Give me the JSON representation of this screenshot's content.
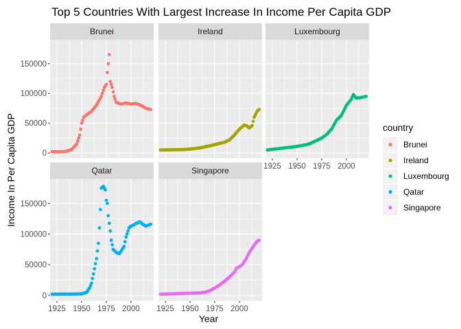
{
  "chart_data": {
    "type": "scatter",
    "title": "Top 5 Countries With Largest Increase In Income Per Capita GDP",
    "xlabel": "Year",
    "ylabel": "Income In Per Capita GDP",
    "xlim": [
      1918,
      2023
    ],
    "ylim": [
      -9000,
      190000
    ],
    "x_ticks": [
      1925,
      1950,
      1975,
      2000,
      2025
    ],
    "y_ticks": [
      0,
      50000,
      100000,
      150000
    ],
    "y_tick_labels": [
      "0",
      "50000",
      "100000",
      "150000"
    ],
    "facet_grid": "3 columns x 2 rows, shared axes",
    "legend": {
      "title": "country",
      "position": "right"
    },
    "series": [
      {
        "name": "Brunei",
        "color": "#F8766D",
        "keypoints": [
          [
            1920,
            2000
          ],
          [
            1930,
            2000
          ],
          [
            1935,
            3000
          ],
          [
            1940,
            6000
          ],
          [
            1945,
            15000
          ],
          [
            1948,
            30000
          ],
          [
            1950,
            50000
          ],
          [
            1952,
            60000
          ],
          [
            1960,
            70000
          ],
          [
            1965,
            80000
          ],
          [
            1970,
            95000
          ],
          [
            1973,
            110000
          ],
          [
            1975,
            115000
          ],
          [
            1976,
            135000
          ],
          [
            1977,
            150000
          ],
          [
            1978,
            165000
          ],
          [
            1979,
            120000
          ],
          [
            1980,
            115000
          ],
          [
            1981,
            110000
          ],
          [
            1983,
            95000
          ],
          [
            1985,
            85000
          ],
          [
            1990,
            82000
          ],
          [
            1995,
            84000
          ],
          [
            2000,
            82000
          ],
          [
            2005,
            83000
          ],
          [
            2010,
            80000
          ],
          [
            2015,
            75000
          ],
          [
            2020,
            73000
          ]
        ]
      },
      {
        "name": "Ireland",
        "color": "#A3A500",
        "keypoints": [
          [
            1920,
            5000
          ],
          [
            1940,
            5500
          ],
          [
            1950,
            6500
          ],
          [
            1960,
            8500
          ],
          [
            1970,
            12000
          ],
          [
            1980,
            16000
          ],
          [
            1985,
            18000
          ],
          [
            1990,
            22000
          ],
          [
            1995,
            30000
          ],
          [
            2000,
            40000
          ],
          [
            2005,
            47000
          ],
          [
            2008,
            45000
          ],
          [
            2010,
            42000
          ],
          [
            2013,
            46000
          ],
          [
            2015,
            60000
          ],
          [
            2018,
            70000
          ],
          [
            2020,
            73000
          ]
        ]
      },
      {
        "name": "Luxembourg",
        "color": "#00BF7D",
        "keypoints": [
          [
            1920,
            5000
          ],
          [
            1930,
            7000
          ],
          [
            1940,
            9000
          ],
          [
            1950,
            11000
          ],
          [
            1960,
            14000
          ],
          [
            1965,
            17000
          ],
          [
            1970,
            21000
          ],
          [
            1975,
            25000
          ],
          [
            1980,
            31000
          ],
          [
            1985,
            40000
          ],
          [
            1990,
            55000
          ],
          [
            1995,
            63000
          ],
          [
            2000,
            80000
          ],
          [
            2005,
            90000
          ],
          [
            2007,
            98000
          ],
          [
            2010,
            92000
          ],
          [
            2015,
            93000
          ],
          [
            2020,
            95000
          ]
        ]
      },
      {
        "name": "Qatar",
        "color": "#00B0F6",
        "keypoints": [
          [
            1920,
            2000
          ],
          [
            1940,
            2000
          ],
          [
            1950,
            2500
          ],
          [
            1955,
            5000
          ],
          [
            1958,
            12000
          ],
          [
            1960,
            20000
          ],
          [
            1962,
            35000
          ],
          [
            1965,
            60000
          ],
          [
            1967,
            85000
          ],
          [
            1968,
            110000
          ],
          [
            1969,
            140000
          ],
          [
            1970,
            175000
          ],
          [
            1972,
            178000
          ],
          [
            1974,
            172000
          ],
          [
            1975,
            155000
          ],
          [
            1976,
            150000
          ],
          [
            1977,
            130000
          ],
          [
            1979,
            105000
          ],
          [
            1980,
            90000
          ],
          [
            1982,
            75000
          ],
          [
            1985,
            70000
          ],
          [
            1988,
            68000
          ],
          [
            1990,
            72000
          ],
          [
            1993,
            80000
          ],
          [
            1995,
            95000
          ],
          [
            1998,
            110000
          ],
          [
            2000,
            113000
          ],
          [
            2003,
            115000
          ],
          [
            2006,
            118000
          ],
          [
            2009,
            120000
          ],
          [
            2012,
            116000
          ],
          [
            2015,
            113000
          ],
          [
            2020,
            116000
          ]
        ]
      },
      {
        "name": "Singapore",
        "color": "#E76BF3",
        "keypoints": [
          [
            1920,
            2000
          ],
          [
            1940,
            3000
          ],
          [
            1950,
            3500
          ],
          [
            1960,
            4000
          ],
          [
            1965,
            5000
          ],
          [
            1970,
            7500
          ],
          [
            1975,
            12000
          ],
          [
            1980,
            17000
          ],
          [
            1985,
            23000
          ],
          [
            1990,
            30000
          ],
          [
            1995,
            38000
          ],
          [
            1997,
            44000
          ],
          [
            2000,
            47000
          ],
          [
            2003,
            50000
          ],
          [
            2007,
            60000
          ],
          [
            2010,
            70000
          ],
          [
            2015,
            82000
          ],
          [
            2018,
            88000
          ],
          [
            2020,
            90000
          ]
        ]
      }
    ]
  }
}
